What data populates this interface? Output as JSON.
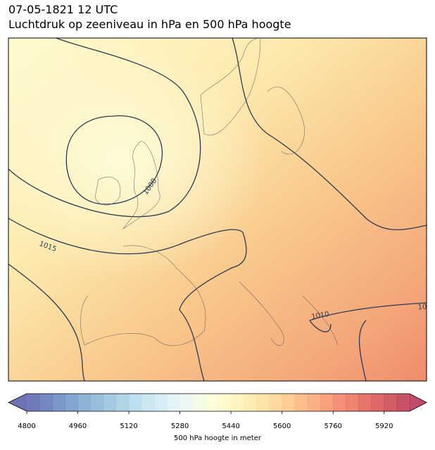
{
  "header": {
    "title": [
      "07-05-1821 12 UTC",
      "Luchtdruk op zeeniveau in hPa en 500 hPa hoogte"
    ]
  },
  "map": {
    "isobar_labels": [
      "1008",
      "1015",
      "1010",
      "10"
    ]
  },
  "colorbar": {
    "lim": [
      4800,
      6000
    ],
    "step": 40,
    "ticks": [
      4800,
      4960,
      5120,
      5280,
      5440,
      5600,
      5760,
      5920
    ],
    "label": "500 hPa hoogte in meter",
    "cmap": [
      "#313695",
      "#4575b4",
      "#74add1",
      "#abd9e9",
      "#e0f3f8",
      "#ffffbf",
      "#fee090",
      "#fdae61",
      "#f46d43",
      "#d73027",
      "#a50026"
    ],
    "alpha": 0.7
  }
}
